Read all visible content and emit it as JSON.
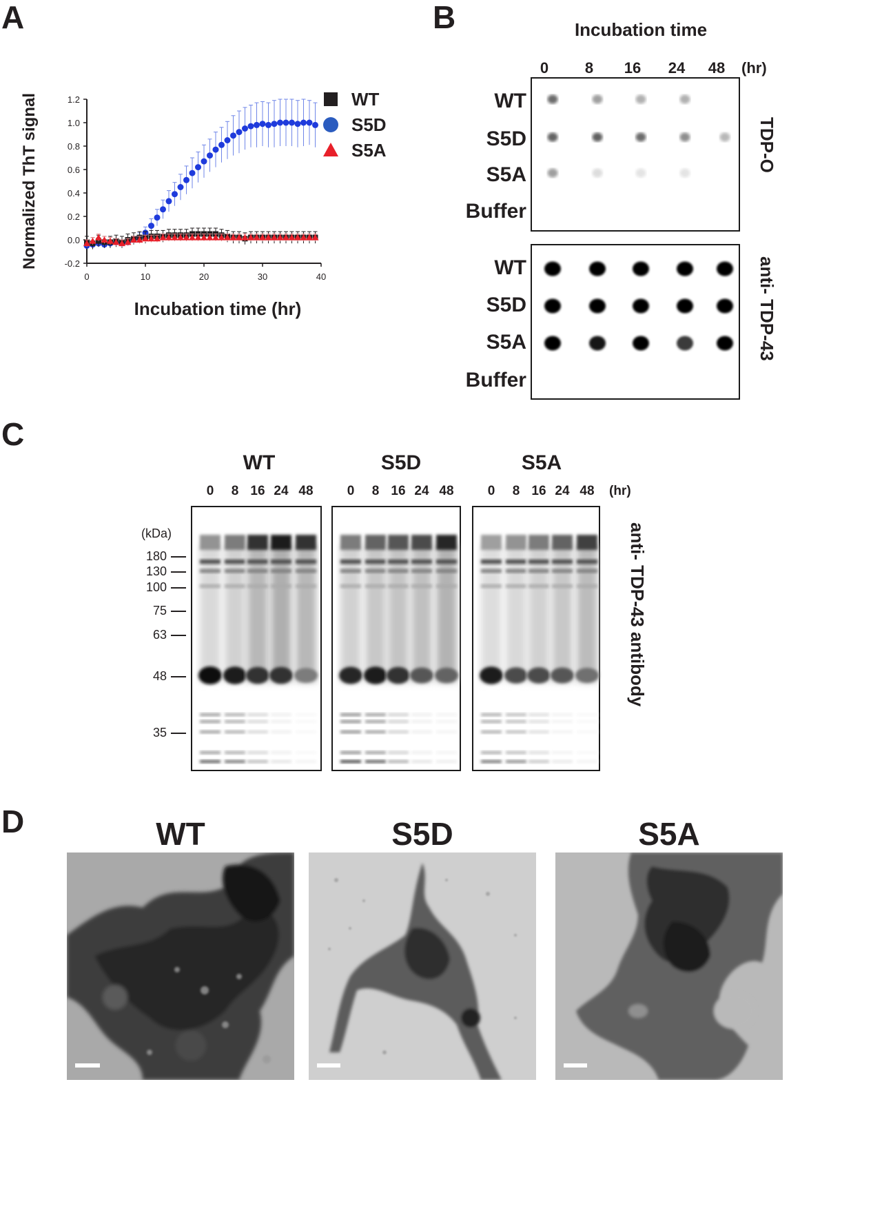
{
  "panels": {
    "a": "A",
    "b": "B",
    "c": "C",
    "d": "D"
  },
  "chart_data": {
    "type": "scatter",
    "title": "",
    "xlabel": "Incubation time (hr)",
    "ylabel": "Normalized ThT signal",
    "xlim": [
      0,
      40
    ],
    "ylim": [
      -0.2,
      1.2
    ],
    "xticks": [
      "0",
      "10",
      "20",
      "30",
      "40"
    ],
    "yticks": [
      "-0.2",
      "0.0",
      "0.2",
      "0.4",
      "0.6",
      "0.8",
      "1.0",
      "1.2"
    ],
    "legend_position": "top-right",
    "series": [
      {
        "name": "WT",
        "color": "#231f20",
        "marker": "square",
        "x": [
          0,
          1,
          2,
          3,
          4,
          5,
          6,
          7,
          8,
          9,
          10,
          11,
          12,
          13,
          14,
          15,
          16,
          17,
          18,
          19,
          20,
          21,
          22,
          23,
          24,
          25,
          26,
          27,
          28,
          29,
          30,
          31,
          32,
          33,
          34,
          35,
          36,
          37,
          38,
          39
        ],
        "y": [
          -0.02,
          -0.03,
          -0.01,
          -0.02,
          -0.02,
          -0.01,
          -0.02,
          0.0,
          0.01,
          0.02,
          0.02,
          0.03,
          0.03,
          0.03,
          0.04,
          0.04,
          0.04,
          0.04,
          0.05,
          0.05,
          0.05,
          0.05,
          0.05,
          0.04,
          0.03,
          0.02,
          0.02,
          0.01,
          0.02,
          0.02,
          0.02,
          0.02,
          0.02,
          0.02,
          0.02,
          0.02,
          0.02,
          0.02,
          0.02,
          0.02
        ],
        "err": 0.05
      },
      {
        "name": "S5D",
        "color": "#1f3bdc",
        "marker": "circle",
        "x": [
          0,
          1,
          2,
          3,
          4,
          5,
          6,
          7,
          8,
          9,
          10,
          11,
          12,
          13,
          14,
          15,
          16,
          17,
          18,
          19,
          20,
          21,
          22,
          23,
          24,
          25,
          26,
          27,
          28,
          29,
          30,
          31,
          32,
          33,
          34,
          35,
          36,
          37,
          38,
          39
        ],
        "y": [
          -0.05,
          -0.04,
          -0.03,
          -0.04,
          -0.03,
          -0.02,
          -0.03,
          -0.02,
          0.0,
          0.02,
          0.06,
          0.12,
          0.19,
          0.26,
          0.33,
          0.39,
          0.45,
          0.51,
          0.57,
          0.62,
          0.67,
          0.72,
          0.77,
          0.81,
          0.85,
          0.89,
          0.92,
          0.95,
          0.97,
          0.98,
          0.99,
          0.98,
          0.99,
          1.0,
          1.0,
          1.0,
          0.99,
          1.0,
          1.0,
          0.98
        ],
        "err": [
          0.02,
          0.02,
          0.02,
          0.02,
          0.02,
          0.02,
          0.02,
          0.02,
          0.03,
          0.04,
          0.05,
          0.06,
          0.07,
          0.08,
          0.09,
          0.1,
          0.11,
          0.12,
          0.13,
          0.13,
          0.14,
          0.14,
          0.15,
          0.15,
          0.16,
          0.17,
          0.18,
          0.18,
          0.18,
          0.19,
          0.19,
          0.19,
          0.2,
          0.2,
          0.2,
          0.2,
          0.2,
          0.2,
          0.19,
          0.19
        ]
      },
      {
        "name": "S5A",
        "color": "#e8202a",
        "marker": "triangle",
        "x": [
          0,
          1,
          2,
          3,
          4,
          5,
          6,
          7,
          8,
          9,
          10,
          11,
          12,
          13,
          14,
          15,
          16,
          17,
          18,
          19,
          20,
          21,
          22,
          23,
          24,
          25,
          26,
          27,
          28,
          29,
          30,
          31,
          32,
          33,
          34,
          35,
          36,
          37,
          38,
          39
        ],
        "y": [
          -0.03,
          -0.01,
          0.02,
          0.0,
          -0.01,
          -0.02,
          -0.03,
          -0.02,
          0.0,
          0.0,
          0.01,
          0.01,
          0.01,
          0.02,
          0.02,
          0.02,
          0.02,
          0.02,
          0.02,
          0.02,
          0.02,
          0.02,
          0.02,
          0.02,
          0.02,
          0.02,
          0.02,
          0.02,
          0.02,
          0.02,
          0.02,
          0.02,
          0.02,
          0.02,
          0.02,
          0.02,
          0.02,
          0.02,
          0.02,
          0.02
        ],
        "err": 0.03
      }
    ]
  },
  "panel_b": {
    "title": "Incubation time",
    "times": [
      "0",
      "8",
      "16",
      "24",
      "48"
    ],
    "unit": "(hr)",
    "rows": [
      "WT",
      "S5D",
      "S5A",
      "Buffer"
    ],
    "blot1": {
      "label": "TDP-O",
      "intensity": [
        [
          0.75,
          0.45,
          0.35,
          0.35,
          0.0
        ],
        [
          0.8,
          0.82,
          0.75,
          0.55,
          0.3
        ],
        [
          0.45,
          0.08,
          0.04,
          0.04,
          0.0
        ],
        [
          0,
          0,
          0,
          0,
          0
        ]
      ]
    },
    "blot2": {
      "label": "anti- TDP-43",
      "intensity": [
        [
          1,
          1,
          1,
          1,
          1
        ],
        [
          1,
          1,
          1,
          1,
          1
        ],
        [
          1,
          0.92,
          1,
          0.75,
          1
        ],
        [
          0,
          0,
          0,
          0,
          0
        ]
      ]
    }
  },
  "panel_c": {
    "groups": [
      "WT",
      "S5D",
      "S5A"
    ],
    "times": [
      "0",
      "8",
      "16",
      "24",
      "48"
    ],
    "unit": "(hr)",
    "kda_label": "(kDa)",
    "markers": [
      "180",
      "130",
      "100",
      "75",
      "63",
      "48",
      "35"
    ],
    "side_label": "anti- TDP-43 antibody"
  },
  "panel_d": {
    "images": [
      "WT",
      "S5D",
      "S5A"
    ]
  }
}
